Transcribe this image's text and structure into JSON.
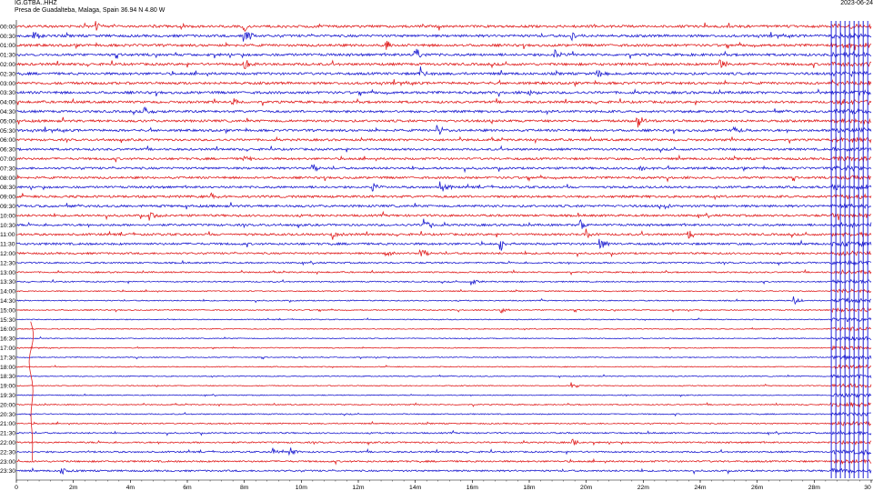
{
  "header": {
    "station": "IG.GTBA..HHZ",
    "location": "Presa de Guadalteba, Malaga, Spain  36.94 N 4.80 W",
    "date": "2023-06-24"
  },
  "chart_data": {
    "type": "helicorder",
    "row_labels": [
      "00:00",
      "00:30",
      "01:00",
      "01:30",
      "02:00",
      "02:30",
      "03:00",
      "03:30",
      "04:00",
      "04:30",
      "05:00",
      "05:30",
      "06:00",
      "06:30",
      "07:00",
      "07:30",
      "08:00",
      "08:30",
      "09:00",
      "09:30",
      "10:00",
      "10:30",
      "11:00",
      "11:30",
      "12:00",
      "12:30",
      "13:00",
      "13:30",
      "14:00",
      "14:30",
      "15:00",
      "15:30",
      "16:00",
      "16:30",
      "17:00",
      "17:30",
      "18:00",
      "18:30",
      "19:00",
      "19:30",
      "20:00",
      "20:30",
      "21:00",
      "21:30",
      "22:00",
      "22:30",
      "23:00",
      "23:30"
    ],
    "x_tick_labels": [
      "0",
      "2m",
      "4m",
      "6m",
      "8m",
      "10m",
      "12m",
      "14m",
      "16m",
      "18m",
      "20m",
      "22m",
      "24m",
      "26m",
      "28m",
      "30"
    ],
    "x_range_minutes": [
      0,
      30
    ],
    "row_colors": [
      "#e02020",
      "#1f1fd0"
    ],
    "noise_level": [
      0.8,
      0.8,
      0.8,
      0.8,
      0.8,
      0.8,
      0.8,
      0.8,
      0.75,
      0.75,
      0.75,
      0.75,
      0.7,
      0.7,
      0.7,
      0.7,
      0.7,
      0.7,
      0.75,
      0.75,
      0.7,
      0.7,
      0.7,
      0.7,
      0.6,
      0.5,
      0.45,
      0.4,
      0.35,
      0.35,
      0.35,
      0.3,
      0.3,
      0.3,
      0.3,
      0.3,
      0.3,
      0.3,
      0.3,
      0.3,
      0.35,
      0.35,
      0.4,
      0.45,
      0.5,
      0.5,
      0.55,
      0.55
    ],
    "events": [
      {
        "row": 0,
        "minute": 2.8,
        "amplitude": 6
      },
      {
        "row": 0,
        "minute": 8.0,
        "amplitude": 6
      },
      {
        "row": 1,
        "minute": 0.6,
        "amplitude": 7
      },
      {
        "row": 1,
        "minute": 8.0,
        "amplitude": 10
      },
      {
        "row": 1,
        "minute": 19.5,
        "amplitude": 6
      },
      {
        "row": 2,
        "minute": 13.0,
        "amplitude": 5
      },
      {
        "row": 3,
        "minute": 14.0,
        "amplitude": 8
      },
      {
        "row": 3,
        "minute": 18.9,
        "amplitude": 6
      },
      {
        "row": 4,
        "minute": 8.0,
        "amplitude": 7
      },
      {
        "row": 4,
        "minute": 24.7,
        "amplitude": 7
      },
      {
        "row": 5,
        "minute": 14.2,
        "amplitude": 6
      },
      {
        "row": 5,
        "minute": 20.4,
        "amplitude": 6
      },
      {
        "row": 7,
        "minute": 18.0,
        "amplitude": 5
      },
      {
        "row": 8,
        "minute": 7.6,
        "amplitude": 5
      },
      {
        "row": 9,
        "minute": 4.5,
        "amplitude": 6
      },
      {
        "row": 10,
        "minute": 21.8,
        "amplitude": 9
      },
      {
        "row": 11,
        "minute": 14.8,
        "amplitude": 6
      },
      {
        "row": 11,
        "minute": 25.2,
        "amplitude": 5
      },
      {
        "row": 14,
        "minute": 8.0,
        "amplitude": 5
      },
      {
        "row": 15,
        "minute": 21.9,
        "amplitude": 6
      },
      {
        "row": 15,
        "minute": 10.4,
        "amplitude": 5
      },
      {
        "row": 17,
        "minute": 12.5,
        "amplitude": 6
      },
      {
        "row": 17,
        "minute": 14.9,
        "amplitude": 7
      },
      {
        "row": 18,
        "minute": 6.8,
        "amplitude": 5
      },
      {
        "row": 19,
        "minute": 22.8,
        "amplitude": 5
      },
      {
        "row": 20,
        "minute": 4.7,
        "amplitude": 6
      },
      {
        "row": 21,
        "minute": 14.3,
        "amplitude": 7
      },
      {
        "row": 21,
        "minute": 19.8,
        "amplitude": 6
      },
      {
        "row": 22,
        "minute": 11.1,
        "amplitude": 7
      },
      {
        "row": 22,
        "minute": 20.0,
        "amplitude": 6
      },
      {
        "row": 22,
        "minute": 23.6,
        "amplitude": 6
      },
      {
        "row": 23,
        "minute": 17.0,
        "amplitude": 8
      },
      {
        "row": 23,
        "minute": 20.5,
        "amplitude": 6
      },
      {
        "row": 24,
        "minute": 14.2,
        "amplitude": 7
      },
      {
        "row": 24,
        "minute": 13.0,
        "amplitude": 5
      },
      {
        "row": 27,
        "minute": 16.0,
        "amplitude": 5
      },
      {
        "row": 29,
        "minute": 27.3,
        "amplitude": 6
      },
      {
        "row": 30,
        "minute": 17.0,
        "amplitude": 5
      },
      {
        "row": 38,
        "minute": 19.5,
        "amplitude": 4
      },
      {
        "row": 44,
        "minute": 19.5,
        "amplitude": 4
      },
      {
        "row": 45,
        "minute": 9.6,
        "amplitude": 7
      },
      {
        "row": 45,
        "minute": 9.0,
        "amplitude": 5
      },
      {
        "row": 47,
        "minute": 1.6,
        "amplitude": 4
      }
    ],
    "long_period_wave": {
      "start_row": 32,
      "end_row": 44,
      "minute": 0.5
    },
    "teleseism_start_minute": 28.6
  }
}
